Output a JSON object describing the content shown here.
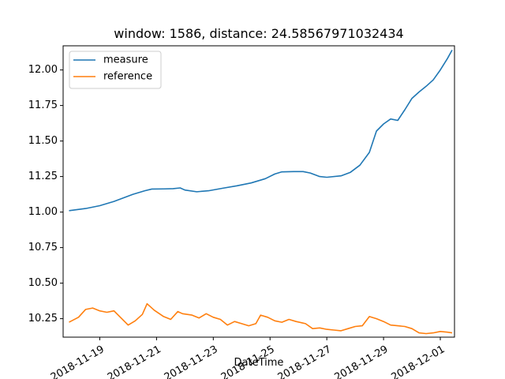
{
  "chart_data": {
    "type": "line",
    "title": "window: 1586, distance: 24.58567971032434",
    "xlabel": "DateTime",
    "ylabel": "",
    "xlim": [
      "2018-11-17 17:00",
      "2018-12-01 12:00"
    ],
    "ylim": [
      10.12,
      12.17
    ],
    "grid": false,
    "legend_position": "top-left",
    "x_tick_labels": [
      "2018-11-19",
      "2018-11-21",
      "2018-11-23",
      "2018-11-25",
      "2018-11-27",
      "2018-11-29",
      "2018-12-01"
    ],
    "y_tick_labels": [
      "10.25",
      "10.50",
      "10.75",
      "11.00",
      "11.25",
      "11.50",
      "11.75",
      "12.00"
    ],
    "y_tick_values": [
      10.25,
      10.5,
      10.75,
      11.0,
      11.25,
      11.5,
      11.75,
      12.0
    ],
    "series": [
      {
        "name": "measure",
        "color": "#1f77b4",
        "points": [
          [
            "2018-11-17 22:00",
            11.01
          ],
          [
            "2018-11-18 12:00",
            11.025
          ],
          [
            "2018-11-19 00:00",
            11.045
          ],
          [
            "2018-11-19 12:00",
            11.075
          ],
          [
            "2018-11-19 20:00",
            11.1
          ],
          [
            "2018-11-20 04:00",
            11.125
          ],
          [
            "2018-11-20 14:00",
            11.15
          ],
          [
            "2018-11-20 20:00",
            11.162
          ],
          [
            "2018-11-21 06:00",
            11.163
          ],
          [
            "2018-11-21 14:00",
            11.165
          ],
          [
            "2018-11-21 20:00",
            11.17
          ],
          [
            "2018-11-22 00:00",
            11.155
          ],
          [
            "2018-11-22 10:00",
            11.143
          ],
          [
            "2018-11-22 20:00",
            11.15
          ],
          [
            "2018-11-23 08:00",
            11.168
          ],
          [
            "2018-11-23 20:00",
            11.185
          ],
          [
            "2018-11-24 08:00",
            11.205
          ],
          [
            "2018-11-24 20:00",
            11.235
          ],
          [
            "2018-11-25 04:00",
            11.268
          ],
          [
            "2018-11-25 10:00",
            11.283
          ],
          [
            "2018-11-25 20:00",
            11.285
          ],
          [
            "2018-11-26 04:00",
            11.285
          ],
          [
            "2018-11-26 10:00",
            11.275
          ],
          [
            "2018-11-26 18:00",
            11.25
          ],
          [
            "2018-11-27 00:00",
            11.245
          ],
          [
            "2018-11-27 12:00",
            11.255
          ],
          [
            "2018-11-27 20:00",
            11.28
          ],
          [
            "2018-11-28 04:00",
            11.33
          ],
          [
            "2018-11-28 12:00",
            11.42
          ],
          [
            "2018-11-28 18:00",
            11.57
          ],
          [
            "2018-11-29 00:00",
            11.62
          ],
          [
            "2018-11-29 06:00",
            11.655
          ],
          [
            "2018-11-29 12:00",
            11.645
          ],
          [
            "2018-11-29 18:00",
            11.72
          ],
          [
            "2018-11-30 00:00",
            11.8
          ],
          [
            "2018-11-30 06:00",
            11.845
          ],
          [
            "2018-11-30 12:00",
            11.885
          ],
          [
            "2018-11-30 18:00",
            11.93
          ],
          [
            "2018-12-01 00:00",
            12.0
          ],
          [
            "2018-12-01 06:00",
            12.08
          ],
          [
            "2018-12-01 10:00",
            12.14
          ]
        ]
      },
      {
        "name": "reference",
        "color": "#ff7f0e",
        "points": [
          [
            "2018-11-17 22:00",
            10.225
          ],
          [
            "2018-11-18 06:00",
            10.26
          ],
          [
            "2018-11-18 12:00",
            10.315
          ],
          [
            "2018-11-18 18:00",
            10.325
          ],
          [
            "2018-11-19 00:00",
            10.305
          ],
          [
            "2018-11-19 06:00",
            10.295
          ],
          [
            "2018-11-19 12:00",
            10.305
          ],
          [
            "2018-11-19 18:00",
            10.255
          ],
          [
            "2018-11-20 00:00",
            10.205
          ],
          [
            "2018-11-20 06:00",
            10.235
          ],
          [
            "2018-11-20 12:00",
            10.28
          ],
          [
            "2018-11-20 16:00",
            10.355
          ],
          [
            "2018-11-20 22:00",
            10.31
          ],
          [
            "2018-11-21 06:00",
            10.265
          ],
          [
            "2018-11-21 12:00",
            10.245
          ],
          [
            "2018-11-21 18:00",
            10.3
          ],
          [
            "2018-11-21 22:00",
            10.285
          ],
          [
            "2018-11-22 06:00",
            10.275
          ],
          [
            "2018-11-22 12:00",
            10.255
          ],
          [
            "2018-11-22 18:00",
            10.285
          ],
          [
            "2018-11-23 00:00",
            10.26
          ],
          [
            "2018-11-23 06:00",
            10.245
          ],
          [
            "2018-11-23 12:00",
            10.205
          ],
          [
            "2018-11-23 18:00",
            10.23
          ],
          [
            "2018-11-24 00:00",
            10.215
          ],
          [
            "2018-11-24 06:00",
            10.2
          ],
          [
            "2018-11-24 12:00",
            10.215
          ],
          [
            "2018-11-24 16:00",
            10.275
          ],
          [
            "2018-11-24 22:00",
            10.26
          ],
          [
            "2018-11-25 04:00",
            10.235
          ],
          [
            "2018-11-25 10:00",
            10.225
          ],
          [
            "2018-11-25 16:00",
            10.245
          ],
          [
            "2018-11-25 22:00",
            10.23
          ],
          [
            "2018-11-26 06:00",
            10.215
          ],
          [
            "2018-11-26 12:00",
            10.18
          ],
          [
            "2018-11-26 18:00",
            10.185
          ],
          [
            "2018-11-27 00:00",
            10.175
          ],
          [
            "2018-11-27 06:00",
            10.17
          ],
          [
            "2018-11-27 12:00",
            10.165
          ],
          [
            "2018-11-27 18:00",
            10.18
          ],
          [
            "2018-11-28 00:00",
            10.195
          ],
          [
            "2018-11-28 06:00",
            10.2
          ],
          [
            "2018-11-28 12:00",
            10.265
          ],
          [
            "2018-11-28 18:00",
            10.25
          ],
          [
            "2018-11-29 00:00",
            10.23
          ],
          [
            "2018-11-29 06:00",
            10.205
          ],
          [
            "2018-11-29 12:00",
            10.2
          ],
          [
            "2018-11-29 18:00",
            10.195
          ],
          [
            "2018-11-30 00:00",
            10.18
          ],
          [
            "2018-11-30 06:00",
            10.15
          ],
          [
            "2018-11-30 12:00",
            10.145
          ],
          [
            "2018-11-30 18:00",
            10.15
          ],
          [
            "2018-12-01 00:00",
            10.16
          ],
          [
            "2018-12-01 06:00",
            10.155
          ],
          [
            "2018-12-01 10:00",
            10.15
          ]
        ]
      }
    ]
  }
}
